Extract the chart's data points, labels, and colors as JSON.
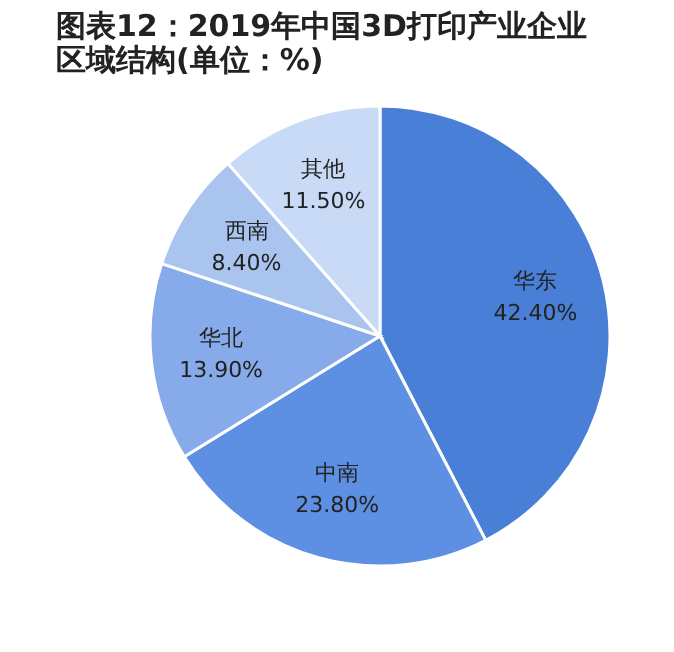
{
  "chart_data": {
    "type": "pie",
    "title": "图表12：2019年中国3D打印产业企业区域结构(单位：%)",
    "categories": [
      "华东",
      "中南",
      "华北",
      "西南",
      "其他"
    ],
    "values": [
      42.4,
      23.8,
      13.9,
      8.4,
      11.5
    ],
    "value_labels": [
      "42.40%",
      "23.80%",
      "13.90%",
      "8.40%",
      "11.50%"
    ],
    "colors": [
      "#4a7fd8",
      "#5d8fe2",
      "#86aaea",
      "#aac4f0",
      "#c8daf6"
    ]
  }
}
